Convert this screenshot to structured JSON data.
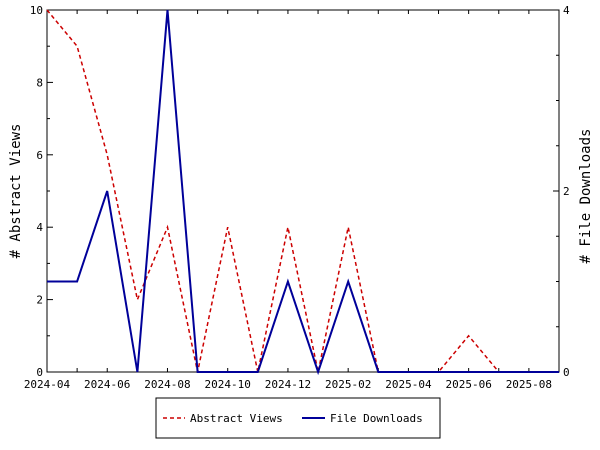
{
  "chart_data": {
    "type": "line",
    "x": [
      "2024-04",
      "2024-05",
      "2024-06",
      "2024-07",
      "2024-08",
      "2024-09",
      "2024-10",
      "2024-11",
      "2024-12",
      "2025-01",
      "2025-02",
      "2025-03",
      "2025-04",
      "2025-05",
      "2025-06",
      "2025-07",
      "2025-08",
      "2025-09"
    ],
    "x_tick_labels": [
      "2024-04",
      "2024-06",
      "2024-08",
      "2024-10",
      "2024-12",
      "2025-02",
      "2025-04",
      "2025-06",
      "2025-08"
    ],
    "series": [
      {
        "name": "Abstract Views",
        "axis": "left",
        "color": "#cc0000",
        "style": "dashed",
        "values": [
          10,
          9,
          6,
          2,
          4,
          0,
          4,
          0,
          4,
          0,
          4,
          0,
          0,
          0,
          1,
          0,
          0,
          0
        ]
      },
      {
        "name": "File Downloads",
        "axis": "right",
        "color": "#000099",
        "style": "solid",
        "values": [
          1,
          1,
          2,
          0,
          4,
          0,
          0,
          0,
          1,
          0,
          1,
          0,
          0,
          0,
          0,
          0,
          0,
          0
        ]
      }
    ],
    "y_left": {
      "label": "# Abstract Views",
      "lim": [
        0,
        10
      ],
      "ticks": [
        "0",
        "2",
        "4",
        "6",
        "8",
        "10"
      ]
    },
    "y_right": {
      "label": "# File Downloads",
      "lim": [
        0,
        4
      ],
      "ticks": [
        "0",
        "2",
        "4"
      ]
    },
    "grid": false,
    "legend_position": "bottom-center"
  }
}
